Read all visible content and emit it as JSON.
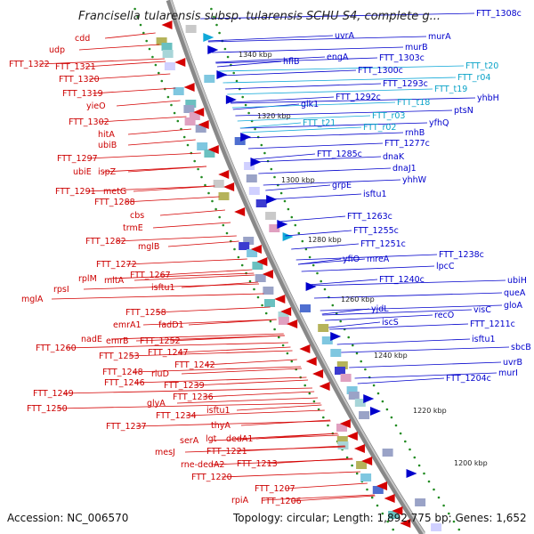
{
  "header": {
    "title": "Francisella tularensis subsp. tularensis SCHU S4, complete g..."
  },
  "footer": {
    "accession": "Accession: NC_006570",
    "topology": "Topology: circular; Length: 1,892,775 bp; Genes: 1,652"
  },
  "ticks": [
    "1340 kbp",
    "1320 kbp",
    "1300 kbp",
    "1280 kbp",
    "1260 kbp",
    "1240 kbp",
    "1220 kbp",
    "1200 kbp"
  ],
  "colors": {
    "reverse": "#d40000",
    "forward": "#0000cc",
    "rna": "#10a8d8",
    "backbone": "#888888",
    "ticks": "#228b22"
  },
  "genes_left": [
    "cdd",
    "udp",
    "FTT_1322",
    "FTT_1321",
    "FTT_1320",
    "FTT_1319",
    "yieO",
    "FTT_1302",
    "hitA",
    "ubiB",
    "FTT_1297",
    "ubiE",
    "ispZ",
    "FTT_1291",
    "metG",
    "FTT_1288",
    "cbs",
    "trmE",
    "FTT_1282",
    "mglB",
    "FTT_1272",
    "rplM",
    "mltA",
    "FTT_1267",
    "rpsI",
    "mglA",
    "isftu1",
    "FTT_1258",
    "emrA1",
    "fadD1",
    "FTT_1260",
    "nadE",
    "emrB",
    "FTT_1252",
    "FTT_1253",
    "FTT_1247",
    "FTT_1248",
    "rluD",
    "FTT_1242",
    "FTT_1246",
    "FTT_1249",
    "FTT_1239",
    "glyA",
    "FTT_1236",
    "FTT_1250",
    "FTT_1234",
    "isftu1",
    "FTT_1237",
    "thyA",
    "serA",
    "lgt",
    "dedA1",
    "mesJ",
    "FTT_1221",
    "rne-dedA2",
    "FTT_1213",
    "FTT_1220",
    "FTT_1207",
    "rpiA",
    "FTT_1206"
  ],
  "genes_right_blue": [
    "FTT_1308c",
    "uvrA",
    "murA",
    "hflB",
    "FTT_1303c",
    "murB",
    "engA",
    "FTT_1300c",
    "FTT_1293c",
    "glk1",
    "FTT_1292c",
    "yhbH",
    "ptsN",
    "rnhB",
    "yfhQ",
    "FTT_1277c",
    "FTT_1285c",
    "dnaK",
    "dnaJ1",
    "grpE",
    "yhhW",
    "isftu1",
    "FTT_1263c",
    "FTT_1255c",
    "FTT_1251c",
    "yfiO",
    "mreA",
    "FTT_1238c",
    "lpcC",
    "FTT_1240c",
    "ubiH",
    "queA",
    "yjdL",
    "gloA",
    "visC",
    "recO",
    "iscS",
    "FTT_1211c",
    "isftu1",
    "sbcB",
    "uvrB",
    "FTT_1204c",
    "murI"
  ],
  "genes_right_cyan": [
    "FTT_t20",
    "FTT_r04",
    "FTT_t19",
    "FTT_t18",
    "FTT_r03",
    "FTT_t21",
    "FTT_r02"
  ]
}
